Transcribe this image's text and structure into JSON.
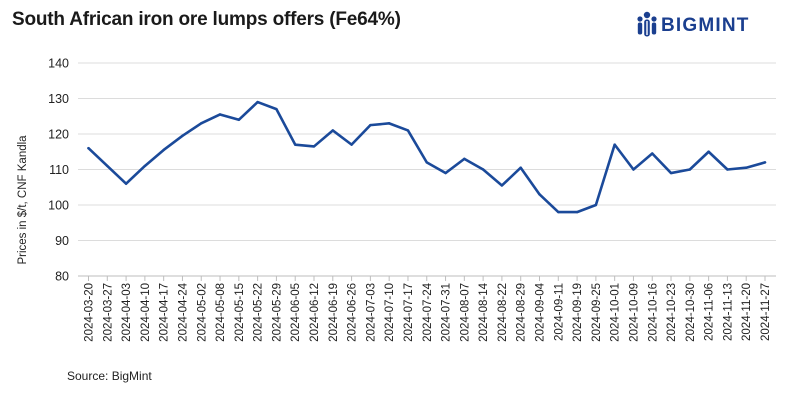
{
  "title": "South African iron ore lumps offers (Fe64%)",
  "logo": {
    "text": "BIGMINT",
    "icon": "bigmint-people-icon",
    "color": "#1b3f8f"
  },
  "source": "Source: BigMint",
  "chart_data": {
    "type": "line",
    "title": "South African iron ore lumps offers (Fe64%)",
    "xlabel": "",
    "ylabel": "Prices in $/t, CNF Kandla",
    "ylim": [
      80,
      140
    ],
    "yticks": [
      80,
      90,
      100,
      110,
      120,
      130,
      140
    ],
    "grid": "horizontal",
    "legend": "none",
    "line_color": "#1b4a9a",
    "categories": [
      "2024-03-20",
      "2024-03-27",
      "2024-04-03",
      "2024-04-10",
      "2024-04-17",
      "2024-04-24",
      "2024-05-02",
      "2024-05-08",
      "2024-05-15",
      "2024-05-22",
      "2024-05-29",
      "2024-06-05",
      "2024-06-12",
      "2024-06-19",
      "2024-06-26",
      "2024-07-03",
      "2024-07-10",
      "2024-07-17",
      "2024-07-24",
      "2024-07-31",
      "2024-08-07",
      "2024-08-14",
      "2024-08-22",
      "2024-08-29",
      "2024-09-04",
      "2024-09-11",
      "2024-09-19",
      "2024-09-25",
      "2024-10-01",
      "2024-10-09",
      "2024-10-16",
      "2024-10-23",
      "2024-10-30",
      "2024-11-06",
      "2024-11-13",
      "2024-11-20",
      "2024-11-27"
    ],
    "series": [
      {
        "values": [
          116,
          111,
          106,
          111,
          115.5,
          119.5,
          123,
          125.5,
          124,
          129,
          127,
          117,
          116.5,
          121,
          117,
          122.5,
          123,
          121,
          112,
          109,
          113,
          110,
          105.5,
          110.5,
          103,
          98,
          98,
          100,
          117,
          110,
          114.5,
          109,
          110,
          115,
          110,
          110.5,
          112
        ]
      }
    ]
  }
}
